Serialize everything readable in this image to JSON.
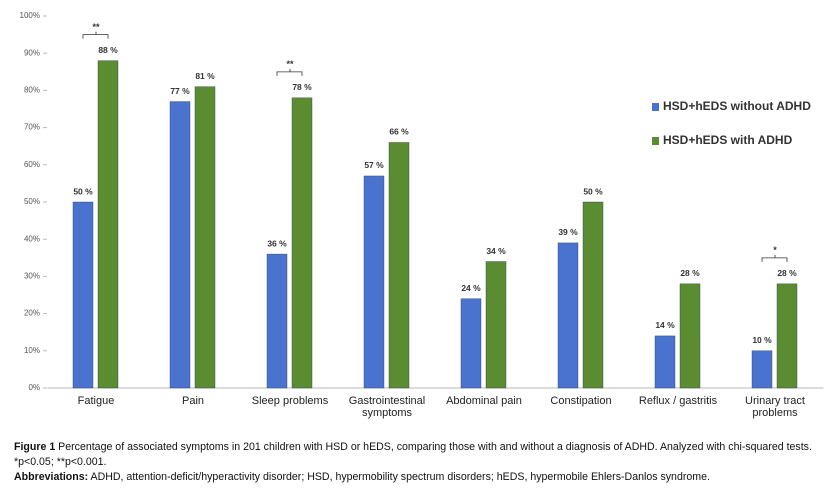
{
  "chart_data": {
    "type": "bar",
    "categories": [
      "Fatigue",
      "Pain",
      "Sleep problems",
      "Gastrointestinal\nsymptoms",
      "Abdominal pain",
      "Constipation",
      "Reflux / gastritis",
      "Urinary tract\nproblems"
    ],
    "series": [
      {
        "name": "HSD+hEDS without ADHD",
        "color": "#4a72cf",
        "values": [
          50,
          77,
          36,
          57,
          24,
          39,
          14,
          10
        ],
        "value_labels": [
          "50 %",
          "77 %",
          "36 %",
          "57 %",
          "24 %",
          "39 %",
          "14 %",
          "10 %"
        ]
      },
      {
        "name": "HSD+hEDS with ADHD",
        "color": "#5b8c32",
        "values": [
          88,
          81,
          78,
          66,
          34,
          50,
          28,
          28
        ],
        "value_labels": [
          "88 %",
          "81 %",
          "78 %",
          "66 %",
          "34 %",
          "50 %",
          "28 %",
          "28 %"
        ]
      }
    ],
    "ylim": [
      0,
      100
    ],
    "yticks": [
      {
        "value": 0,
        "label": "0%"
      },
      {
        "value": 10,
        "label": "10%"
      },
      {
        "value": 20,
        "label": "20%"
      },
      {
        "value": 30,
        "label": "30%"
      },
      {
        "value": 40,
        "label": "40%"
      },
      {
        "value": 50,
        "label": "50%"
      },
      {
        "value": 60,
        "label": "60%"
      },
      {
        "value": 70,
        "label": "70%"
      },
      {
        "value": 80,
        "label": "80%"
      },
      {
        "value": 90,
        "label": "90%"
      },
      {
        "value": 100,
        "label": "100%"
      }
    ],
    "annotations": [
      {
        "category": "Fatigue",
        "label": "**"
      },
      {
        "category": "Sleep problems",
        "label": "**"
      },
      {
        "category": "Urinary tract\nproblems",
        "label": "*"
      }
    ],
    "legend": "right"
  },
  "caption": {
    "figure_label": "Figure 1",
    "text": "Percentage of associated symptoms in 201 children with HSD or hEDS, comparing those with and without a diagnosis of ADHD. Analyzed with chi-squared tests. *p<0.05; **p<0.001.",
    "abbreviations_label": "Abbreviations:",
    "abbreviations": "ADHD, attention-deficit/hyperactivity disorder; HSD, hypermobility spectrum disorders; hEDS, hypermobile Ehlers-Danlos syndrome."
  }
}
